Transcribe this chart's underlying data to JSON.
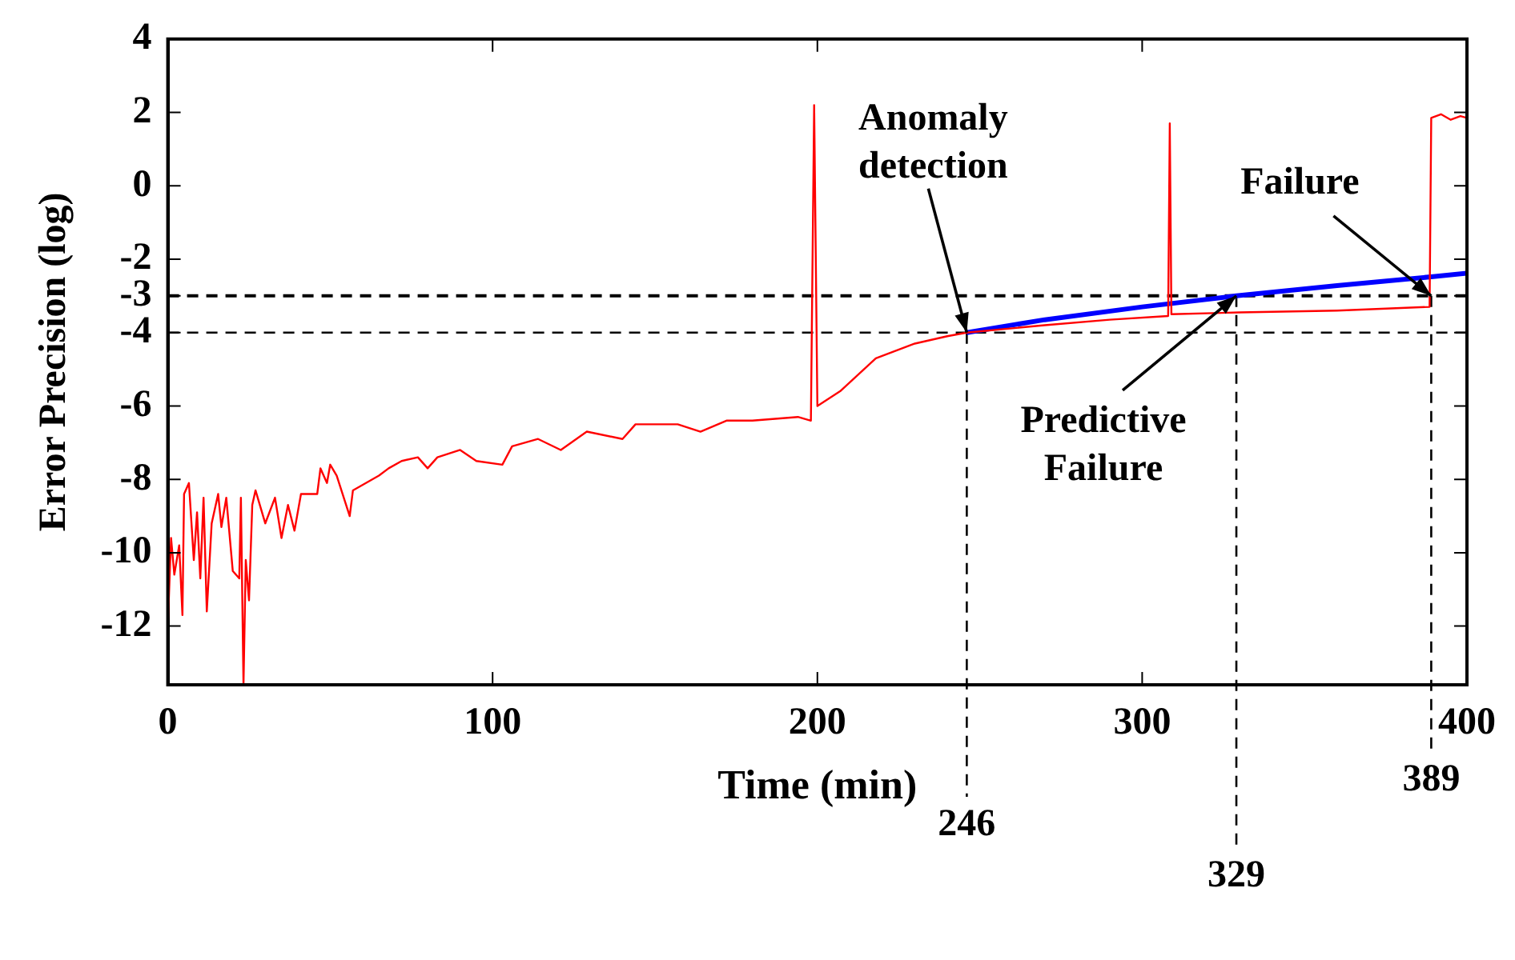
{
  "chart_data": {
    "type": "line",
    "xlabel": "Time (min)",
    "ylabel": "Error Precision (log)",
    "xlim": [
      0,
      400
    ],
    "xticks": [
      0,
      100,
      200,
      300,
      400
    ],
    "ylim": [
      -13.6,
      4
    ],
    "yticks": [
      4,
      2,
      0,
      -2,
      -3,
      -4,
      -6,
      -8,
      -10,
      -12
    ],
    "grid": false,
    "legend": false,
    "marker": "none",
    "line_style": "solid",
    "series": [
      {
        "color": "#ff0000",
        "x": [
          0,
          1,
          2,
          3.5,
          4.5,
          5,
          6.5,
          8,
          9,
          10,
          11,
          12,
          13.5,
          15.5,
          16.5,
          18,
          20,
          22,
          22.5,
          23.3,
          24,
          25,
          26,
          27,
          30,
          33,
          35,
          37,
          39,
          41,
          46,
          47,
          49,
          50,
          52,
          56,
          57,
          61,
          65,
          68,
          72,
          77,
          80,
          83,
          90,
          95,
          103,
          106,
          114,
          121,
          129,
          140,
          144,
          157,
          164,
          172,
          180,
          194,
          198,
          199,
          200,
          207,
          218,
          230,
          240,
          246,
          270,
          290,
          308,
          308.5,
          309,
          330,
          360,
          388.5,
          389,
          392,
          395,
          398,
          400
        ],
        "values": [
          -12,
          -9.6,
          -10.6,
          -9.8,
          -11.7,
          -8.4,
          -8.1,
          -10.2,
          -8.9,
          -10.7,
          -8.5,
          -11.6,
          -9.2,
          -8.4,
          -9.3,
          -8.5,
          -10.5,
          -10.7,
          -8.5,
          -13.6,
          -10.2,
          -11.3,
          -8.7,
          -8.3,
          -9.2,
          -8.5,
          -9.6,
          -8.7,
          -9.4,
          -8.4,
          -8.4,
          -7.7,
          -8.1,
          -7.6,
          -7.9,
          -9,
          -8.3,
          -8.1,
          -7.9,
          -7.7,
          -7.5,
          -7.4,
          -7.7,
          -7.4,
          -7.2,
          -7.5,
          -7.6,
          -7.1,
          -6.9,
          -7.2,
          -6.7,
          -6.9,
          -6.5,
          -6.5,
          -6.7,
          -6.4,
          -6.4,
          -6.3,
          -6.4,
          2.2,
          -6,
          -5.6,
          -4.7,
          -4.3,
          -4.1,
          -4,
          -3.8,
          -3.65,
          -3.55,
          1.7,
          -3.5,
          -3.45,
          -3.4,
          -3.3,
          1.85,
          1.95,
          1.8,
          1.9,
          1.85
        ]
      },
      {
        "color": "#0000ff",
        "x": [
          246,
          270,
          300,
          329,
          360,
          389,
          400
        ],
        "values": [
          -4,
          -3.65,
          -3.3,
          -3,
          -2.72,
          -2.48,
          -2.38
        ]
      }
    ],
    "ref_lines": [
      {
        "axis": "y",
        "value": -3,
        "line_style": "dashed",
        "color": "#000000"
      },
      {
        "axis": "y",
        "value": -4,
        "line_style": "dashed",
        "color": "#000000"
      },
      {
        "axis": "x",
        "value": 246,
        "label": "246",
        "line_style": "dashed",
        "color": "#000000"
      },
      {
        "axis": "x",
        "value": 329,
        "label": "329",
        "line_style": "dashed",
        "color": "#000000"
      },
      {
        "axis": "x",
        "value": 389,
        "label": "389",
        "line_style": "dashed",
        "color": "#000000"
      }
    ],
    "annotations": [
      {
        "text": "Anomaly\ndetection",
        "x": 246,
        "y": -4
      },
      {
        "text": "Failure",
        "x": 389,
        "y": -3
      },
      {
        "text": "Predictive\nFailure",
        "x": 329,
        "y": -3
      }
    ]
  }
}
